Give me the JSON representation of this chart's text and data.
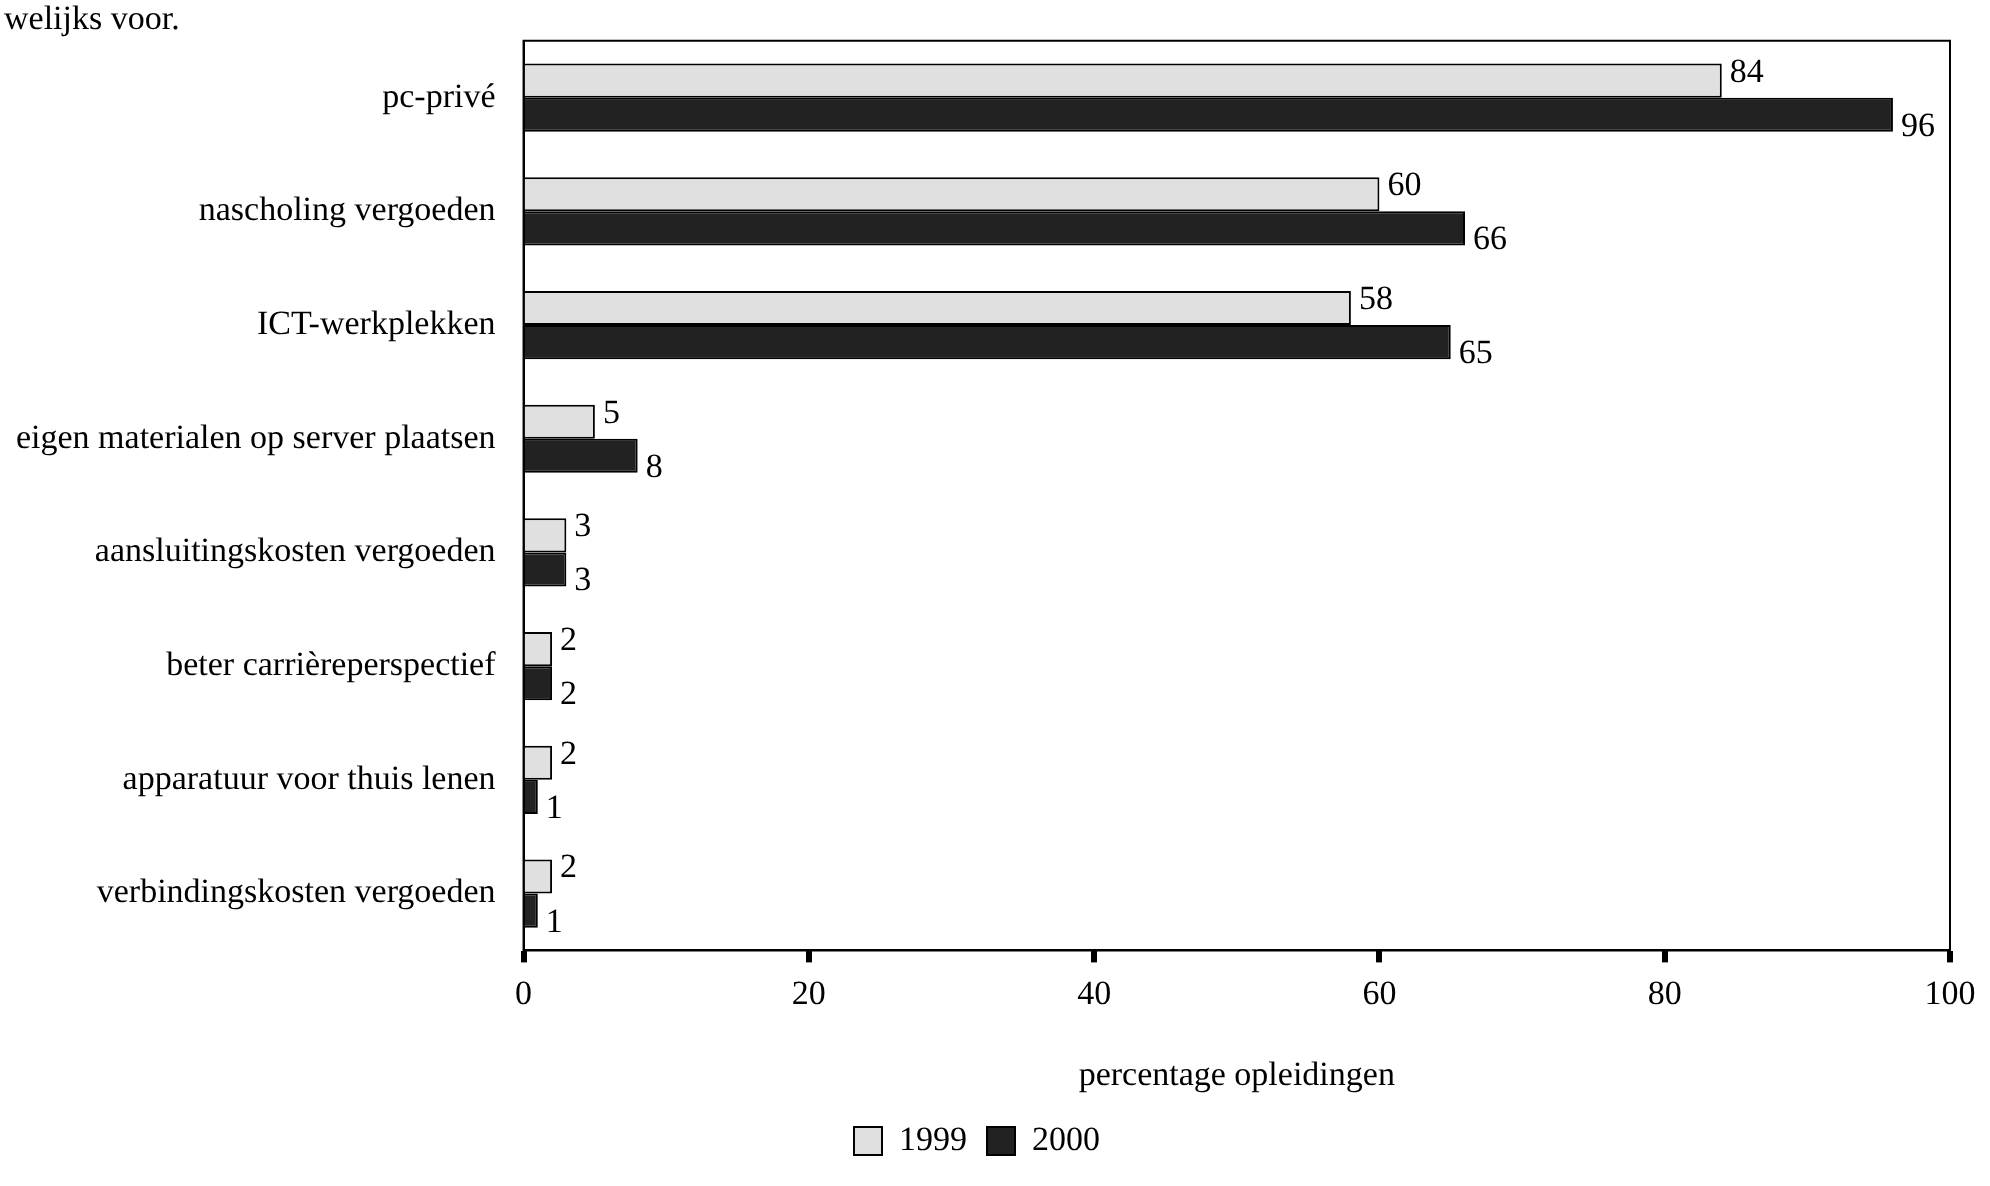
{
  "chart_data": {
    "type": "bar",
    "orientation": "horizontal",
    "title": "welijks voor.",
    "xlabel": "percentage opleidingen",
    "categories": [
      "pc-privé",
      "nascholing vergoeden",
      "ICT-werkplekken",
      "eigen materialen op server plaatsen",
      "aansluitingskosten vergoeden",
      "beter carrièreperspectief",
      "apparatuur voor thuis lenen",
      "verbindingskosten vergoeden"
    ],
    "series": [
      {
        "name": "1999",
        "color": "#e0e0e0",
        "values": [
          84,
          60,
          58,
          5,
          3,
          2,
          2,
          2
        ]
      },
      {
        "name": "2000",
        "color": "#222222",
        "values": [
          96,
          66,
          65,
          8,
          3,
          2,
          1,
          1
        ]
      }
    ],
    "xlim": [
      0,
      100
    ],
    "xticks": [
      0,
      20,
      40,
      60,
      80,
      100
    ],
    "grid": false,
    "legend": "bottom",
    "data_labels": true
  }
}
